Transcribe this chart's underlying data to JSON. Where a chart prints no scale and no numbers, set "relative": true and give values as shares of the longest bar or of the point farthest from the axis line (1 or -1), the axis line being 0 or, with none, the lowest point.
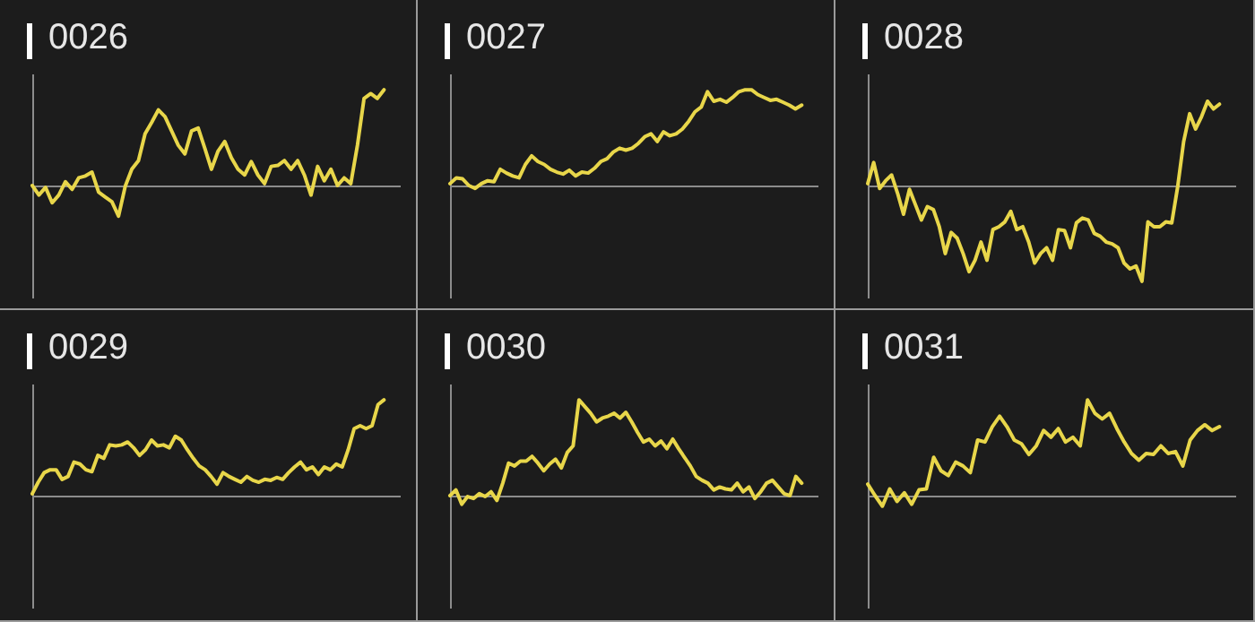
{
  "chart_data": [
    {
      "type": "line",
      "title": "0026",
      "relative": true,
      "categories": [
        null,
        null,
        null,
        null,
        null,
        null,
        null,
        null,
        null,
        null,
        null,
        null,
        null,
        null,
        null,
        null,
        null,
        null,
        null,
        null,
        null,
        null,
        null,
        null,
        null,
        null,
        null,
        null,
        null,
        null,
        null,
        null,
        null,
        null,
        null,
        null,
        null,
        null,
        null,
        null,
        null,
        null,
        null,
        null,
        null,
        null,
        null,
        null,
        null,
        null,
        null,
        null,
        null,
        null
      ],
      "series": [
        {
          "color": "#e8d64a",
          "values": [
            0,
            -0.1,
            -0.02,
            -0.18,
            -0.1,
            0.04,
            -0.04,
            0.08,
            0.1,
            0.14,
            -0.07,
            -0.12,
            -0.17,
            -0.32,
            -0.01,
            0.17,
            0.26,
            0.54,
            0.66,
            0.79,
            0.72,
            0.57,
            0.42,
            0.33,
            0.57,
            0.6,
            0.39,
            0.17,
            0.36,
            0.46,
            0.29,
            0.17,
            0.11,
            0.25,
            0.11,
            0.02,
            0.2,
            0.21,
            0.26,
            0.17,
            0.26,
            0.11,
            -0.1,
            0.2,
            0.05,
            0.17,
            0,
            0.08,
            0.02,
            0.42,
            0.91,
            0.96,
            0.91,
            1
          ]
        }
      ]
    },
    {
      "type": "line",
      "title": "0027",
      "relative": true,
      "categories": [
        null,
        null,
        null,
        null,
        null,
        null,
        null,
        null,
        null,
        null,
        null,
        null,
        null,
        null,
        null,
        null,
        null,
        null,
        null,
        null,
        null,
        null,
        null,
        null,
        null,
        null,
        null,
        null,
        null,
        null,
        null,
        null,
        null,
        null,
        null,
        null,
        null,
        null,
        null,
        null,
        null,
        null,
        null,
        null,
        null,
        null,
        null,
        null,
        null,
        null,
        null,
        null,
        null,
        null,
        null,
        null,
        null
      ],
      "series": [
        {
          "color": "#e8d64a",
          "values": [
            0.02,
            0.08,
            0.07,
            0,
            -0.03,
            0.02,
            0.05,
            0.04,
            0.17,
            0.13,
            0.1,
            0.08,
            0.22,
            0.31,
            0.25,
            0.22,
            0.17,
            0.14,
            0.12,
            0.16,
            0.1,
            0.14,
            0.13,
            0.18,
            0.25,
            0.28,
            0.35,
            0.39,
            0.37,
            0.39,
            0.44,
            0.51,
            0.54,
            0.46,
            0.56,
            0.52,
            0.54,
            0.59,
            0.67,
            0.77,
            0.82,
            0.98,
            0.88,
            0.9,
            0.87,
            0.92,
            0.98,
            1,
            1,
            0.95,
            0.92,
            0.89,
            0.9,
            0.87,
            0.84,
            0.8,
            0.84
          ]
        }
      ]
    },
    {
      "type": "line",
      "title": "0028",
      "relative": true,
      "categories": [
        null,
        null,
        null,
        null,
        null,
        null,
        null,
        null,
        null,
        null,
        null,
        null,
        null,
        null,
        null,
        null,
        null,
        null,
        null,
        null,
        null,
        null,
        null,
        null,
        null,
        null,
        null,
        null,
        null,
        null,
        null,
        null,
        null,
        null,
        null,
        null,
        null,
        null,
        null,
        null,
        null,
        null,
        null,
        null,
        null,
        null,
        null,
        null,
        null,
        null,
        null,
        null,
        null,
        null,
        null,
        null,
        null,
        null,
        null,
        null
      ],
      "series": [
        {
          "color": "#e8d64a",
          "values": [
            0.02,
            0.24,
            -0.03,
            0.05,
            0.11,
            -0.08,
            -0.3,
            -0.04,
            -0.2,
            -0.36,
            -0.22,
            -0.25,
            -0.43,
            -0.71,
            -0.49,
            -0.55,
            -0.71,
            -0.9,
            -0.78,
            -0.59,
            -0.78,
            -0.46,
            -0.43,
            -0.38,
            -0.27,
            -0.46,
            -0.43,
            -0.59,
            -0.81,
            -0.71,
            -0.65,
            -0.78,
            -0.46,
            -0.47,
            -0.65,
            -0.39,
            -0.34,
            -0.36,
            -0.5,
            -0.53,
            -0.59,
            -0.61,
            -0.65,
            -0.81,
            -0.87,
            -0.84,
            -1,
            -0.38,
            -0.43,
            -0.43,
            -0.38,
            -0.39,
            -0.01,
            0.46,
            0.75,
            0.59,
            0.72,
            0.88,
            0.8,
            0.85
          ]
        }
      ]
    },
    {
      "type": "line",
      "title": "0029",
      "relative": true,
      "categories": [
        null,
        null,
        null,
        null,
        null,
        null,
        null,
        null,
        null,
        null,
        null,
        null,
        null,
        null,
        null,
        null,
        null,
        null,
        null,
        null,
        null,
        null,
        null,
        null,
        null,
        null,
        null,
        null,
        null,
        null,
        null,
        null,
        null,
        null,
        null,
        null,
        null,
        null,
        null,
        null,
        null,
        null,
        null,
        null,
        null,
        null,
        null,
        null,
        null,
        null,
        null,
        null,
        null,
        null,
        null,
        null,
        null,
        null,
        null,
        null
      ],
      "series": [
        {
          "color": "#e8d64a",
          "values": [
            0.02,
            0.14,
            0.24,
            0.27,
            0.27,
            0.17,
            0.2,
            0.35,
            0.33,
            0.27,
            0.25,
            0.42,
            0.39,
            0.53,
            0.52,
            0.53,
            0.56,
            0.5,
            0.42,
            0.48,
            0.58,
            0.52,
            0.53,
            0.5,
            0.62,
            0.58,
            0.48,
            0.39,
            0.31,
            0.27,
            0.2,
            0.12,
            0.24,
            0.2,
            0.17,
            0.14,
            0.2,
            0.16,
            0.14,
            0.17,
            0.16,
            0.19,
            0.17,
            0.24,
            0.3,
            0.35,
            0.27,
            0.3,
            0.22,
            0.3,
            0.27,
            0.33,
            0.3,
            0.48,
            0.7,
            0.73,
            0.7,
            0.73,
            0.95,
            1
          ]
        }
      ]
    },
    {
      "type": "line",
      "title": "0030",
      "relative": true,
      "categories": [
        null,
        null,
        null,
        null,
        null,
        null,
        null,
        null,
        null,
        null,
        null,
        null,
        null,
        null,
        null,
        null,
        null,
        null,
        null,
        null,
        null,
        null,
        null,
        null,
        null,
        null,
        null,
        null,
        null,
        null,
        null,
        null,
        null,
        null,
        null,
        null,
        null,
        null,
        null,
        null,
        null,
        null,
        null,
        null,
        null,
        null,
        null,
        null,
        null,
        null,
        null,
        null,
        null,
        null,
        null,
        null,
        null,
        null,
        null,
        null,
        null
      ],
      "series": [
        {
          "color": "#e8d64a",
          "values": [
            0,
            0.06,
            -0.09,
            -0.01,
            -0.03,
            0.02,
            -0.01,
            0.04,
            -0.05,
            0.13,
            0.34,
            0.31,
            0.36,
            0.36,
            0.41,
            0.34,
            0.26,
            0.33,
            0.38,
            0.29,
            0.45,
            0.52,
            1,
            0.93,
            0.86,
            0.77,
            0.81,
            0.83,
            0.86,
            0.81,
            0.87,
            0.77,
            0.66,
            0.56,
            0.59,
            0.52,
            0.57,
            0.49,
            0.59,
            0.49,
            0.4,
            0.31,
            0.2,
            0.16,
            0.13,
            0.06,
            0.09,
            0.07,
            0.06,
            0.13,
            0.04,
            0.09,
            -0.03,
            0.04,
            0.13,
            0.16,
            0.09,
            0.02,
            0,
            0.2,
            0.13
          ]
        }
      ]
    },
    {
      "type": "line",
      "title": "0031",
      "relative": true,
      "categories": [
        null,
        null,
        null,
        null,
        null,
        null,
        null,
        null,
        null,
        null,
        null,
        null,
        null,
        null,
        null,
        null,
        null,
        null,
        null,
        null,
        null,
        null,
        null,
        null,
        null,
        null,
        null,
        null,
        null,
        null,
        null,
        null,
        null,
        null,
        null,
        null,
        null,
        null,
        null,
        null,
        null,
        null,
        null,
        null,
        null,
        null,
        null,
        null,
        null
      ],
      "series": [
        {
          "color": "#e8d64a",
          "values": [
            0.12,
            0,
            -0.11,
            0.07,
            -0.06,
            0.03,
            -0.09,
            0.06,
            0.07,
            0.4,
            0.26,
            0.21,
            0.35,
            0.31,
            0.24,
            0.58,
            0.56,
            0.72,
            0.83,
            0.72,
            0.58,
            0.54,
            0.43,
            0.52,
            0.68,
            0.61,
            0.7,
            0.56,
            0.61,
            0.52,
            1,
            0.86,
            0.8,
            0.86,
            0.7,
            0.56,
            0.44,
            0.37,
            0.44,
            0.43,
            0.52,
            0.44,
            0.46,
            0.31,
            0.58,
            0.68,
            0.74,
            0.68,
            0.72
          ]
        }
      ]
    }
  ]
}
